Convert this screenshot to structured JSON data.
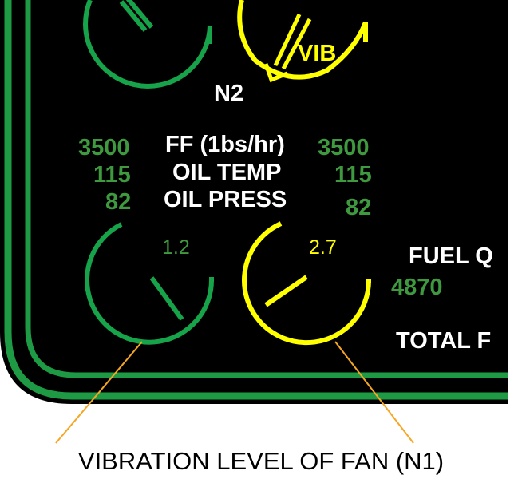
{
  "colors": {
    "panel_background": "#000000",
    "bezel_green": "#1e9a45",
    "gauge_green": "#16a34a",
    "gauge_yellow": "#ffff00",
    "value_green": "#3f9a3f",
    "label_white": "#ffffff",
    "leader_orange": "#f5a623",
    "caption_black": "#000000"
  },
  "top_gauges": {
    "left": {
      "status": "normal",
      "icon": "circular-gauge-icon"
    },
    "right": {
      "status": "caution",
      "overlay_label": "VIB",
      "icon": "circular-gauge-icon"
    },
    "group_label": "N2"
  },
  "center_labels": {
    "line1": "FF (1bs/hr)",
    "line2": "OIL TEMP",
    "line3": "OIL PRESS"
  },
  "engine_left": {
    "ff": "3500",
    "oil_temp": "115",
    "oil_press": "82"
  },
  "engine_right": {
    "ff": "3500",
    "oil_temp": "115",
    "oil_press": "82"
  },
  "vib_gauges": {
    "left": {
      "value": "1.2",
      "status": "normal",
      "icon": "vibration-gauge-icon"
    },
    "right": {
      "value": "2.7",
      "status": "caution",
      "icon": "vibration-gauge-icon"
    }
  },
  "fuel": {
    "qty_label": "FUEL Q",
    "qty_value": "4870",
    "total_label": "TOTAL F"
  },
  "caption": "VIBRATION LEVEL OF FAN (N1)"
}
